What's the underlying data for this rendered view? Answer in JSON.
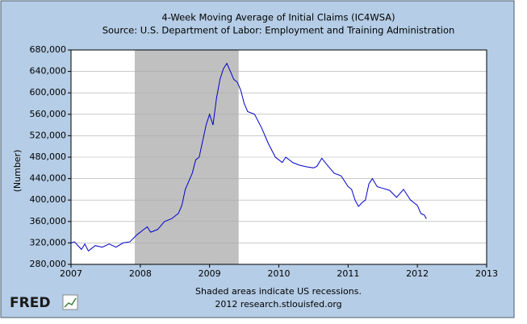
{
  "chart_data": {
    "type": "line",
    "title": "4-Week Moving Average of Initial Claims (IC4WSA)",
    "subtitle": "Source: U.S. Department of Labor: Employment and Training Administration",
    "y_label": "(Number)",
    "note": "Shaded areas indicate US recessions.",
    "credit": "2012 research.stlouisfed.org",
    "logo": "FRED",
    "recession_color": "#c0c0c0",
    "recessions": [
      {
        "start": 2007.92,
        "end": 2009.42
      }
    ],
    "xlim": [
      2007,
      2013
    ],
    "xticks": [
      2007,
      2008,
      2009,
      2010,
      2011,
      2012,
      2013
    ],
    "ylim": [
      280000,
      680000
    ],
    "yticks": [
      {
        "value": 280000,
        "label": "280,000"
      },
      {
        "value": 320000,
        "label": "320,000"
      },
      {
        "value": 360000,
        "label": "360,000"
      },
      {
        "value": 400000,
        "label": "400,000"
      },
      {
        "value": 440000,
        "label": "440,000"
      },
      {
        "value": 480000,
        "label": "480,000"
      },
      {
        "value": 520000,
        "label": "520,000"
      },
      {
        "value": 560000,
        "label": "560,000"
      },
      {
        "value": 600000,
        "label": "600,000"
      },
      {
        "value": 640000,
        "label": "640,000"
      },
      {
        "value": 680000,
        "label": "680,000"
      }
    ],
    "grid": true,
    "x": [
      2007.0,
      2007.05,
      2007.1,
      2007.15,
      2007.2,
      2007.25,
      2007.3,
      2007.35,
      2007.45,
      2007.55,
      2007.65,
      2007.75,
      2007.85,
      2007.95,
      2008.05,
      2008.1,
      2008.15,
      2008.25,
      2008.35,
      2008.45,
      2008.55,
      2008.6,
      2008.65,
      2008.7,
      2008.75,
      2008.8,
      2008.85,
      2008.9,
      2008.95,
      2009.0,
      2009.05,
      2009.1,
      2009.15,
      2009.2,
      2009.25,
      2009.3,
      2009.35,
      2009.4,
      2009.45,
      2009.5,
      2009.55,
      2009.65,
      2009.75,
      2009.85,
      2009.95,
      2010.0,
      2010.05,
      2010.1,
      2010.2,
      2010.3,
      2010.4,
      2010.5,
      2010.55,
      2010.62,
      2010.7,
      2010.8,
      2010.9,
      2011.0,
      2011.05,
      2011.1,
      2011.15,
      2011.2,
      2011.25,
      2011.3,
      2011.35,
      2011.42,
      2011.5,
      2011.6,
      2011.7,
      2011.8,
      2011.9,
      2012.0,
      2012.05,
      2012.1,
      2012.13
    ],
    "series": [
      {
        "name": "IC4WSA",
        "color": "#0000cc",
        "values": [
          320000,
          322000,
          315000,
          308000,
          318000,
          305000,
          310000,
          315000,
          312000,
          318000,
          312000,
          320000,
          322000,
          335000,
          345000,
          350000,
          340000,
          345000,
          360000,
          365000,
          375000,
          390000,
          420000,
          435000,
          450000,
          475000,
          480000,
          510000,
          540000,
          560000,
          540000,
          590000,
          625000,
          645000,
          655000,
          640000,
          625000,
          620000,
          605000,
          580000,
          565000,
          560000,
          535000,
          505000,
          480000,
          475000,
          470000,
          480000,
          470000,
          465000,
          462000,
          460000,
          463000,
          478000,
          465000,
          450000,
          445000,
          425000,
          420000,
          400000,
          388000,
          395000,
          400000,
          430000,
          440000,
          425000,
          422000,
          418000,
          405000,
          420000,
          400000,
          390000,
          375000,
          372000,
          365000
        ]
      }
    ]
  }
}
